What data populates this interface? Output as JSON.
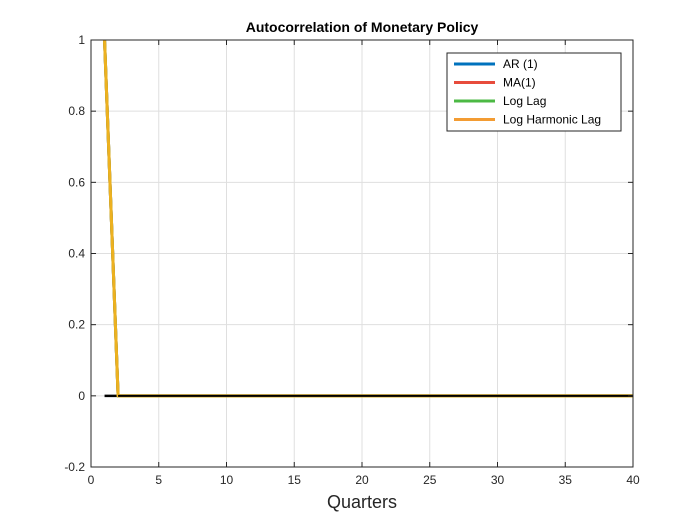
{
  "chart_data": {
    "type": "line",
    "title": "Autocorrelation of Monetary Policy",
    "xlabel": "Quarters",
    "ylabel": "",
    "xlim": [
      0,
      40
    ],
    "ylim": [
      -0.2,
      1
    ],
    "xticks": [
      0,
      5,
      10,
      15,
      20,
      25,
      30,
      35,
      40
    ],
    "yticks": [
      -0.2,
      0,
      0.2,
      0.4,
      0.6,
      0.8,
      1
    ],
    "xtick_labels": [
      "0",
      "5",
      "10",
      "15",
      "20",
      "25",
      "30",
      "35",
      "40"
    ],
    "ytick_labels": [
      "-0.2",
      "0",
      "0.2",
      "0.4",
      "0.6",
      "0.8",
      "1"
    ],
    "grid": true,
    "legend_position": "top-right",
    "zero_line": {
      "y": 0,
      "color": "#000000"
    },
    "series": [
      {
        "name": "AR (1)",
        "color": "#0072BD",
        "x": [
          1,
          2,
          40
        ],
        "y": [
          1,
          0,
          0
        ]
      },
      {
        "name": "MA(1)",
        "color": "#D95319",
        "x": [
          1,
          2,
          40
        ],
        "y": [
          1,
          0,
          0
        ]
      },
      {
        "name": "Log Lag",
        "color": "#77AC30",
        "x": [
          1,
          2,
          40
        ],
        "y": [
          1,
          0,
          0
        ]
      },
      {
        "name": "Log Harmonic Lag",
        "color": "#EDB120",
        "x": [
          1,
          2,
          40
        ],
        "y": [
          1,
          0,
          0
        ]
      }
    ],
    "legend_colors": [
      "#0072BD",
      "#E74C3C",
      "#4CB944",
      "#F39C33"
    ]
  }
}
